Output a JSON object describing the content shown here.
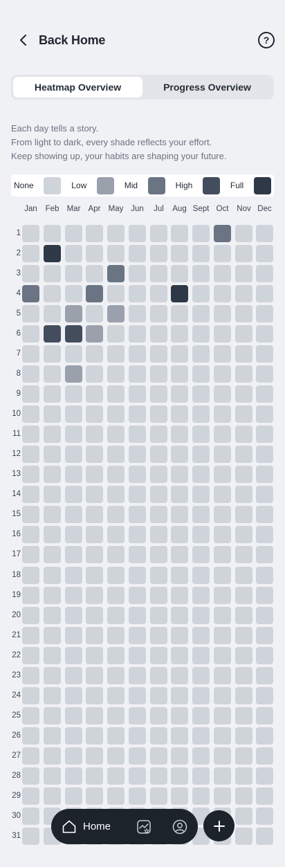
{
  "header": {
    "back_label": "Back Home",
    "help_label": "?"
  },
  "tabs": [
    {
      "label": "Heatmap Overview",
      "active": true
    },
    {
      "label": "Progress Overview",
      "active": false
    }
  ],
  "intro": {
    "line1": "Each day tells a story.",
    "line2": "From light to dark, every shade reflects your effort.",
    "line3": "Keep showing up, your habits are shaping your future."
  },
  "legend": [
    {
      "label": "None",
      "color": "#cfd3da"
    },
    {
      "label": "Low",
      "color": "#9aa1ad"
    },
    {
      "label": "Mid",
      "color": "#6b7483"
    },
    {
      "label": "High",
      "color": "#434d5e"
    },
    {
      "label": "Full",
      "color": "#2f3847"
    }
  ],
  "months": [
    "Jan",
    "Feb",
    "Mar",
    "Apr",
    "May",
    "Jun",
    "Jul",
    "Aug",
    "Sept",
    "Oct",
    "Nov",
    "Dec"
  ],
  "days": [
    "1",
    "2",
    "3",
    "4",
    "5",
    "6",
    "7",
    "8",
    "9",
    "10",
    "11",
    "12",
    "13",
    "14",
    "15",
    "16",
    "17",
    "18",
    "19",
    "20",
    "21",
    "22",
    "23",
    "24",
    "25",
    "26",
    "27",
    "28",
    "29",
    "30",
    "31"
  ],
  "heatmap": [
    {
      "day": 1,
      "month": 9,
      "level": 2
    },
    {
      "day": 2,
      "month": 1,
      "level": 4
    },
    {
      "day": 3,
      "month": 4,
      "level": 2
    },
    {
      "day": 4,
      "month": 0,
      "level": 2
    },
    {
      "day": 4,
      "month": 3,
      "level": 2
    },
    {
      "day": 4,
      "month": 7,
      "level": 4
    },
    {
      "day": 5,
      "month": 2,
      "level": 1
    },
    {
      "day": 5,
      "month": 4,
      "level": 1
    },
    {
      "day": 6,
      "month": 1,
      "level": 3
    },
    {
      "day": 6,
      "month": 2,
      "level": 3
    },
    {
      "day": 6,
      "month": 3,
      "level": 1
    },
    {
      "day": 8,
      "month": 2,
      "level": 1
    }
  ],
  "nav": {
    "home_label": "Home",
    "home_icon": "home-icon",
    "stats_icon": "chart-star-icon",
    "profile_icon": "profile-icon",
    "add_icon": "plus-icon"
  }
}
